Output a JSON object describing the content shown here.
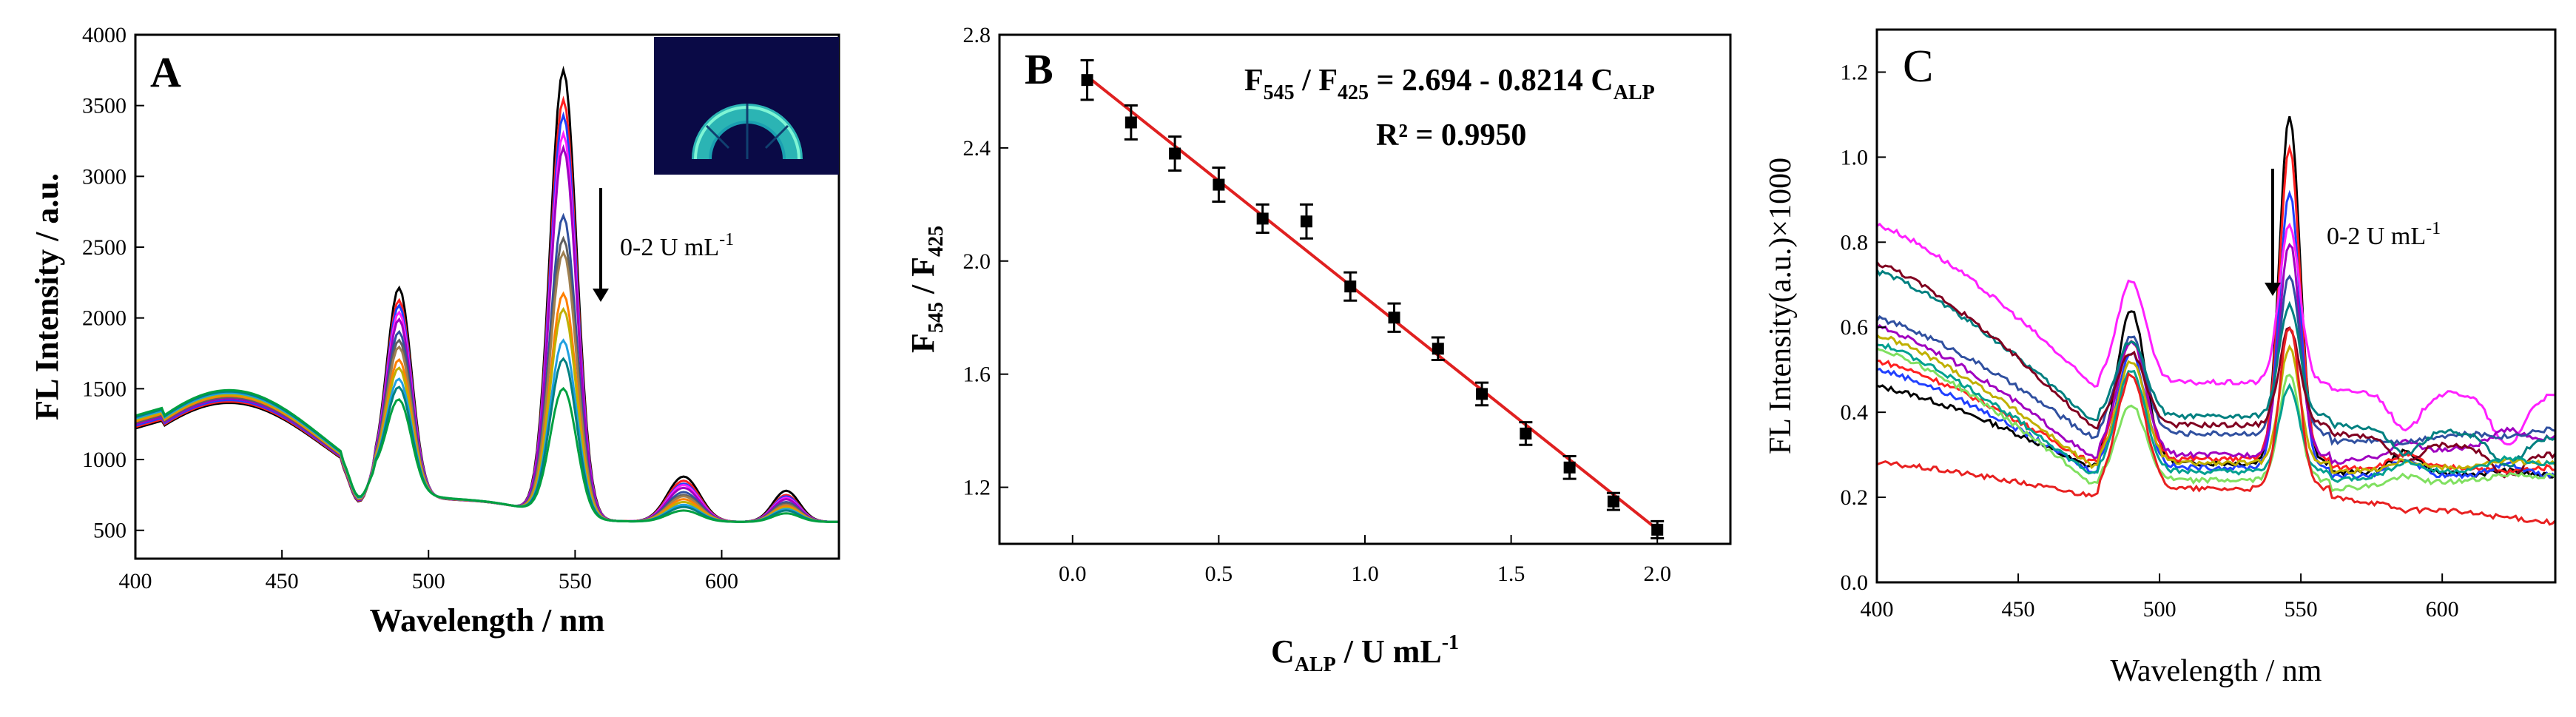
{
  "figure": {
    "panels": [
      "A",
      "B",
      "C"
    ],
    "panel_a_annotation": "0-2 U mL⁻¹",
    "panel_c_annotation": "0-2 U mL⁻¹",
    "inset": "photograph-inset (fan of vials glowing cyan/green under UV)"
  },
  "chart_data": [
    {
      "panel": "A",
      "type": "line",
      "title": "",
      "xlabel": "Wavelength / nm",
      "ylabel": "FL Intensity / a.u.",
      "xlim": [
        400,
        640
      ],
      "ylim": [
        300,
        4000
      ],
      "xticks": [
        400,
        450,
        500,
        550,
        600
      ],
      "yticks": [
        500,
        1000,
        1500,
        2000,
        2500,
        3000,
        3500,
        4000
      ],
      "annotation": "0-2 U mL⁻¹",
      "peaks_nm": [
        490,
        545,
        587,
        622
      ],
      "series": [
        {
          "color": "#000000",
          "peak_545": 3750,
          "peak_490": 2080,
          "peak_587": 800,
          "peak_622": 680,
          "base_430": 1400
        },
        {
          "color": "#ff2020",
          "peak_545": 3540,
          "peak_490": 1990,
          "peak_587": 770,
          "peak_622": 650,
          "base_430": 1410
        },
        {
          "color": "#2040ff",
          "peak_545": 3430,
          "peak_490": 1950,
          "peak_587": 750,
          "peak_622": 640,
          "base_430": 1420
        },
        {
          "color": "#ff20ff",
          "peak_545": 3300,
          "peak_490": 1900,
          "peak_587": 740,
          "peak_622": 630,
          "base_430": 1430
        },
        {
          "color": "#a000c0",
          "peak_545": 3200,
          "peak_490": 1850,
          "peak_587": 720,
          "peak_622": 620,
          "base_430": 1430
        },
        {
          "color": "#3050a0",
          "peak_545": 2720,
          "peak_490": 1760,
          "peak_587": 690,
          "peak_622": 600,
          "base_430": 1440
        },
        {
          "color": "#606060",
          "peak_545": 2560,
          "peak_490": 1700,
          "peak_587": 670,
          "peak_622": 590,
          "base_430": 1440
        },
        {
          "color": "#a08050",
          "peak_545": 2460,
          "peak_490": 1650,
          "peak_587": 660,
          "peak_622": 580,
          "base_430": 1450
        },
        {
          "color": "#ff8000",
          "peak_545": 2170,
          "peak_490": 1560,
          "peak_587": 640,
          "peak_622": 570,
          "base_430": 1450
        },
        {
          "color": "#c0b000",
          "peak_545": 2060,
          "peak_490": 1500,
          "peak_587": 620,
          "peak_622": 560,
          "base_430": 1460
        },
        {
          "color": "#20a0e0",
          "peak_545": 1840,
          "peak_490": 1420,
          "peak_587": 600,
          "peak_622": 550,
          "base_430": 1470
        },
        {
          "color": "#008080",
          "peak_545": 1710,
          "peak_490": 1360,
          "peak_587": 585,
          "peak_622": 540,
          "base_430": 1480
        },
        {
          "color": "#00a040",
          "peak_545": 1500,
          "peak_490": 1270,
          "peak_587": 560,
          "peak_622": 520,
          "base_430": 1490
        }
      ]
    },
    {
      "panel": "B",
      "type": "scatter",
      "title": "",
      "xlabel": "C_ALP / U mL⁻¹",
      "ylabel": "F545 / F425",
      "xlim": [
        -0.25,
        2.25
      ],
      "ylim": [
        1.0,
        2.8
      ],
      "xticks": [
        0.0,
        0.5,
        1.0,
        1.5,
        2.0
      ],
      "yticks": [
        1.2,
        1.6,
        2.0,
        2.4,
        2.8
      ],
      "equation": {
        "lhs_a": "F",
        "lhs_a_sub": "545",
        "lhs_b": "F",
        "lhs_b_sub": "425",
        "rhs": "= 2.694 - 0.8214 C",
        "rhs_sub": "ALP"
      },
      "r_squared": "R² = 0.9950",
      "fit": {
        "intercept": 2.694,
        "slope": -0.8214,
        "x_range": [
          0.05,
          2.0
        ],
        "color": "#e02020"
      },
      "x": [
        0.05,
        0.2,
        0.35,
        0.5,
        0.65,
        0.8,
        0.95,
        1.1,
        1.25,
        1.4,
        1.55,
        1.7,
        1.85,
        2.0
      ],
      "y": [
        2.64,
        2.49,
        2.38,
        2.27,
        2.15,
        2.14,
        1.91,
        1.8,
        1.69,
        1.53,
        1.39,
        1.27,
        1.15,
        1.05
      ],
      "err": [
        0.07,
        0.06,
        0.06,
        0.06,
        0.05,
        0.06,
        0.05,
        0.05,
        0.04,
        0.04,
        0.04,
        0.04,
        0.03,
        0.03
      ]
    },
    {
      "panel": "C",
      "type": "line",
      "title": "",
      "xlabel": "Wavelength / nm",
      "ylabel": "FL Intensity(a.u.)×1000",
      "xlim": [
        400,
        640
      ],
      "ylim": [
        0.0,
        1.3
      ],
      "xticks": [
        400,
        450,
        500,
        550,
        600
      ],
      "yticks": [
        0.0,
        0.2,
        0.4,
        0.6,
        0.8,
        1.0,
        1.2
      ],
      "annotation": "0-2 U mL⁻¹",
      "series": [
        {
          "color": "#000000",
          "start": 0.46,
          "dip": 0.26,
          "p490": 0.62,
          "p545": 1.08,
          "p587": 0.31,
          "p622": 0.27,
          "end": 0.25
        },
        {
          "color": "#ff2020",
          "start": 0.52,
          "dip": 0.27,
          "p490": 0.55,
          "p545": 1.0,
          "p587": 0.3,
          "p622": 0.26,
          "end": 0.27
        },
        {
          "color": "#2040ff",
          "start": 0.5,
          "dip": 0.25,
          "p490": 0.52,
          "p545": 0.9,
          "p587": 0.29,
          "p622": 0.28,
          "end": 0.25
        },
        {
          "color": "#ff20ff",
          "start": 0.84,
          "dip": 0.45,
          "p490": 0.69,
          "p545": 0.82,
          "p587": 0.36,
          "p622": 0.33,
          "end": 0.44
        },
        {
          "color": "#a000c0",
          "start": 0.6,
          "dip": 0.28,
          "p490": 0.55,
          "p545": 0.78,
          "p587": 0.31,
          "p622": 0.31,
          "end": 0.34
        },
        {
          "color": "#3050a0",
          "start": 0.62,
          "dip": 0.33,
          "p490": 0.56,
          "p545": 0.7,
          "p587": 0.32,
          "p622": 0.32,
          "end": 0.36
        },
        {
          "color": "#008080",
          "start": 0.73,
          "dip": 0.37,
          "p490": 0.55,
          "p545": 0.63,
          "p587": 0.31,
          "p622": 0.3,
          "end": 0.34
        },
        {
          "color": "#800020",
          "start": 0.75,
          "dip": 0.35,
          "p490": 0.52,
          "p545": 0.58,
          "p587": 0.3,
          "p622": 0.29,
          "end": 0.3
        },
        {
          "color": "#c0b000",
          "start": 0.58,
          "dip": 0.26,
          "p490": 0.5,
          "p545": 0.53,
          "p587": 0.28,
          "p622": 0.27,
          "end": 0.28
        },
        {
          "color": "#80e060",
          "start": 0.55,
          "dip": 0.22,
          "p490": 0.4,
          "p545": 0.47,
          "p587": 0.24,
          "p622": 0.23,
          "end": 0.25
        },
        {
          "color": "#00a090",
          "start": 0.56,
          "dip": 0.24,
          "p490": 0.48,
          "p545": 0.44,
          "p587": 0.27,
          "p622": 0.26,
          "end": 0.28
        },
        {
          "color": "#e82020",
          "start": 0.28,
          "dip": 0.2,
          "p490": 0.47,
          "p545": 0.58,
          "p587": 0.19,
          "p622": 0.2,
          "end": 0.14
        }
      ]
    }
  ]
}
